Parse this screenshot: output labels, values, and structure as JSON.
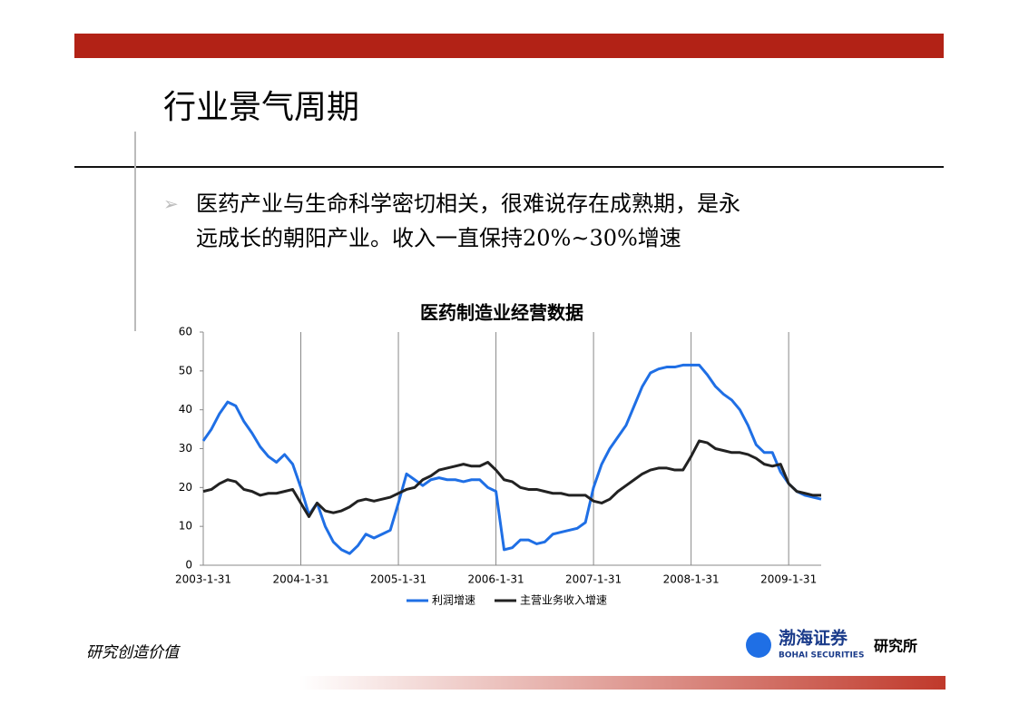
{
  "slide_title": "行业景气周期",
  "bullet": [
    "医药产业与生命科学密切相关，很难说存在成熟期，是永",
    "远成长的朝阳产业。收入一直保持20%~30%增速"
  ],
  "footer": {
    "motto": "研究创造价值",
    "logo_cn": "渤海证券",
    "logo_en": "BOHAI SECURITIES",
    "dept": "研究所"
  },
  "chart_data": {
    "type": "line",
    "title": "医药制造业经营数据",
    "categories": [
      "2003-1-31",
      null,
      null,
      null,
      null,
      null,
      null,
      null,
      null,
      null,
      null,
      null,
      "2004-1-31",
      null,
      null,
      null,
      null,
      null,
      null,
      null,
      null,
      null,
      null,
      null,
      "2005-1-31",
      null,
      null,
      null,
      null,
      null,
      null,
      null,
      null,
      null,
      null,
      null,
      "2006-1-31",
      null,
      null,
      null,
      null,
      null,
      null,
      null,
      null,
      null,
      null,
      null,
      "2007-1-31",
      null,
      null,
      null,
      null,
      null,
      null,
      null,
      null,
      null,
      null,
      null,
      "2008-1-31",
      null,
      null,
      null,
      null,
      null,
      null,
      null,
      null,
      null,
      null,
      null,
      "2009-1-31",
      null,
      null,
      null,
      null
    ],
    "series": [
      {
        "name": "利润增速",
        "color": "#1f6fe5",
        "values": [
          32,
          35,
          39,
          42,
          41,
          37,
          34,
          30.5,
          28,
          26.5,
          28.5,
          26,
          20,
          13,
          16,
          10,
          6,
          4,
          3,
          5,
          8,
          7,
          8,
          9,
          16,
          23.5,
          22,
          20.5,
          22,
          22.5,
          22,
          22,
          21.5,
          22,
          22,
          20,
          19,
          4,
          4.5,
          6.5,
          6.5,
          5.5,
          6,
          8,
          8.5,
          9,
          9.5,
          11,
          20,
          26,
          30,
          33,
          36,
          41,
          46,
          49.5,
          50.5,
          51,
          51,
          51.5,
          51.5,
          51.5,
          49,
          46,
          44,
          42.5,
          40,
          36,
          31,
          29,
          29,
          24,
          21,
          19,
          18,
          17.5,
          17
        ]
      },
      {
        "name": "主营业务收入增速",
        "color": "#222222",
        "values": [
          19,
          19.5,
          21,
          22,
          21.5,
          19.5,
          19,
          18,
          18.5,
          18.5,
          19,
          19.5,
          16,
          12.5,
          16,
          14,
          13.5,
          14,
          15,
          16.5,
          17,
          16.5,
          17,
          17.5,
          18.5,
          19.5,
          20,
          22,
          23,
          24.5,
          25,
          25.5,
          26,
          25.5,
          25.5,
          26.5,
          24.5,
          22,
          21.5,
          20,
          19.5,
          19.5,
          19,
          18.5,
          18.5,
          18,
          18,
          18,
          16.5,
          16,
          17,
          19,
          20.5,
          22,
          23.5,
          24.5,
          25,
          25,
          24.5,
          24.5,
          28,
          32,
          31.5,
          30,
          29.5,
          29,
          29,
          28.5,
          27.5,
          26,
          25.5,
          26,
          21,
          19,
          18.5,
          18,
          18
        ]
      }
    ],
    "ylim": [
      0,
      60
    ],
    "yticks": [
      0,
      10,
      20,
      30,
      40,
      50,
      60
    ],
    "grid": "x"
  }
}
